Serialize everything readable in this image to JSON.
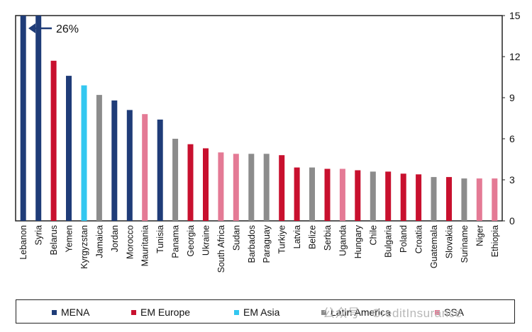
{
  "chart_data": {
    "type": "bar",
    "ylim": [
      0,
      15
    ],
    "yticks": [
      0,
      3,
      6,
      9,
      12,
      15
    ],
    "y_axis_side": "right",
    "categories": [
      "Lebanon",
      "Syria",
      "Belarus",
      "Yemen",
      "Kyrgyzstan",
      "Jamaica",
      "Jordan",
      "Morocco",
      "Mauritania",
      "Tunisia",
      "Panama",
      "Georgia",
      "Ukraine",
      "South Africa",
      "Sudan",
      "Barbados",
      "Paraguay",
      "Turkiye",
      "Latvia",
      "Belize",
      "Serbia",
      "Uganda",
      "Hungary",
      "Chile",
      "Bulgaria",
      "Poland",
      "Croatia",
      "Guatemala",
      "Slovakia",
      "Suriname",
      "Niger",
      "Ethiopia"
    ],
    "values": [
      26,
      15,
      11.7,
      10.6,
      9.9,
      9.2,
      8.8,
      8.1,
      7.8,
      7.4,
      6.0,
      5.6,
      5.3,
      5.0,
      4.9,
      4.9,
      4.9,
      4.8,
      3.9,
      3.9,
      3.8,
      3.8,
      3.7,
      3.6,
      3.6,
      3.45,
      3.4,
      3.2,
      3.2,
      3.1,
      3.1,
      3.1
    ],
    "groups": [
      "MENA",
      "MENA",
      "EM Europe",
      "MENA",
      "EM Asia",
      "Latin America",
      "MENA",
      "MENA",
      "SSA",
      "MENA",
      "Latin America",
      "EM Europe",
      "EM Europe",
      "SSA",
      "SSA",
      "Latin America",
      "Latin America",
      "EM Europe",
      "EM Europe",
      "Latin America",
      "EM Europe",
      "SSA",
      "EM Europe",
      "Latin America",
      "EM Europe",
      "EM Europe",
      "EM Europe",
      "Latin America",
      "EM Europe",
      "Latin America",
      "SSA",
      "SSA"
    ],
    "series": [
      {
        "name": "MENA",
        "color": "#1f3c78"
      },
      {
        "name": "EM Europe",
        "color": "#c8102e"
      },
      {
        "name": "EM Asia",
        "color": "#33c7f0"
      },
      {
        "name": "Latin America",
        "color": "#8c8c8c"
      },
      {
        "name": "SSA",
        "color": "#e47a95"
      }
    ],
    "annotation": {
      "text": "26%",
      "category": "Lebanon"
    },
    "legend_position": "bottom",
    "grid": false
  },
  "watermark": "公众号 · CreditInsurance"
}
